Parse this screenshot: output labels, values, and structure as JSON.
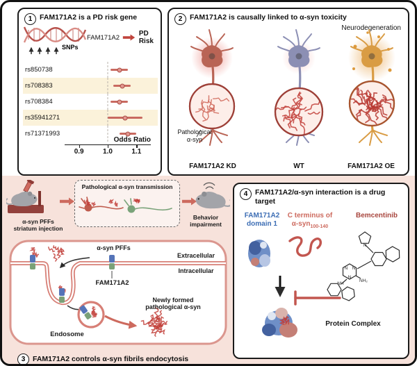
{
  "figure": {
    "colors": {
      "accent_salmon": "#cd6a5e",
      "dark_red": "#8e3b36",
      "pink_background": "#f7e2db",
      "cream_row": "#fbf2da",
      "blue_label": "#3c6db4",
      "salmon_label": "#cd6a5e"
    },
    "panels": {
      "p1": {
        "number": "1",
        "title": "FAM171A2 is a PD risk gene",
        "snps_label": "SNPs",
        "gene": "FAM171A2",
        "risk": "PD Risk"
      },
      "p2": {
        "number": "2",
        "title": "FAM171A2 is causally linked to α-syn toxicity",
        "neurodegeneration": "Neurodegeneration",
        "pathological_line1": "Pathological",
        "pathological_line2": "α-syn",
        "conditions": [
          {
            "label": "FAM171A2 KD"
          },
          {
            "label": "WT"
          },
          {
            "label": "FAM171A2 OE"
          }
        ]
      },
      "p3": {
        "number": "3",
        "title": "FAM171A2 controls α-syn fibrils endocytosis",
        "injection_line1": "α-syn PFFs",
        "injection_line2": "striatum injection",
        "transmission": "Pathological α-syn transmission",
        "behavior_line1": "Behavior",
        "behavior_line2": "impairment",
        "pffs": "α-syn PFFs",
        "extracellular": "Extracellular",
        "intracellular": "Intracellular",
        "receptor": "FAM171A2",
        "newly_formed_line1": "Newly formed",
        "newly_formed_line2": "pathological α-syn",
        "endosome": "Endosome"
      },
      "p4": {
        "number": "4",
        "title": "FAM171A2/α-syn interaction is a drug target",
        "domain_line1": "FAM171A2",
        "domain_line2": "domain 1",
        "cterm_line1": "C terminus of",
        "cterm_base": "α-syn",
        "cterm_sub": "100-140",
        "drug": "Bemcentinib",
        "complex": "Protein Complex"
      }
    }
  },
  "chart_data": {
    "type": "scatter",
    "subtype": "forest-plot",
    "xlabel": "Odds Ratio",
    "xlim": [
      0.85,
      1.15
    ],
    "xticks": [
      0.9,
      1.0,
      1.1
    ],
    "reference_line": 1.0,
    "grid": false,
    "points": [
      {
        "label": "rs850738",
        "or": 1.04,
        "ci_low": 1.01,
        "ci_high": 1.07
      },
      {
        "label": "rs708383",
        "or": 1.05,
        "ci_low": 1.02,
        "ci_high": 1.08
      },
      {
        "label": "rs708384",
        "or": 1.04,
        "ci_low": 1.01,
        "ci_high": 1.07
      },
      {
        "label": "rs35941271",
        "or": 1.06,
        "ci_low": 1.0,
        "ci_high": 1.12
      },
      {
        "label": "rs71371993",
        "or": 1.07,
        "ci_low": 1.04,
        "ci_high": 1.1
      }
    ]
  }
}
